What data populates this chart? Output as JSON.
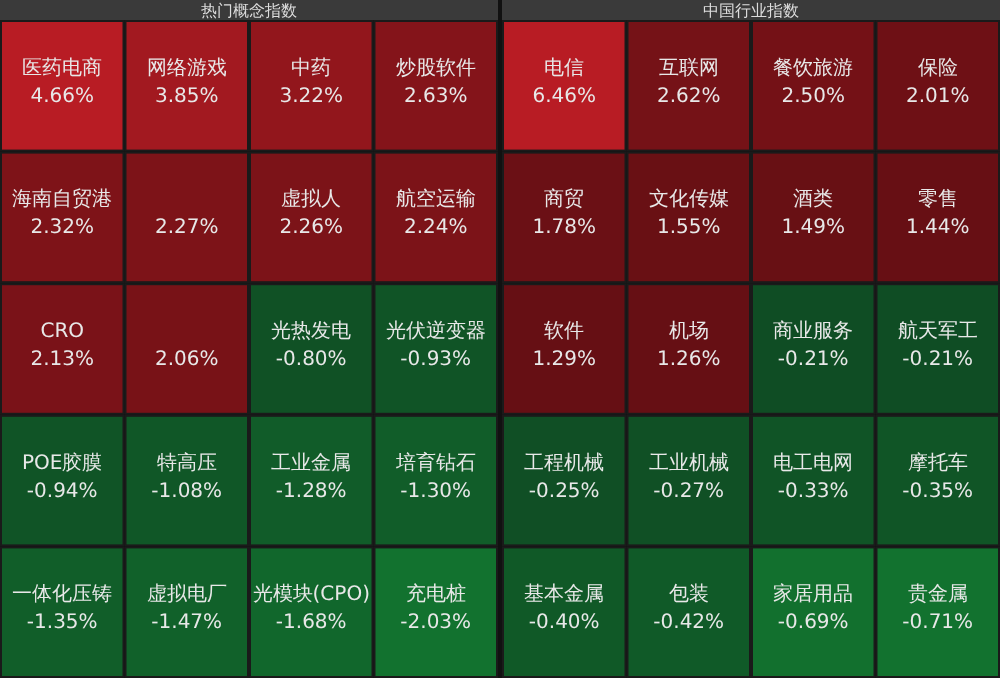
{
  "chart_data": [
    {
      "type": "other",
      "title": "热门概念指数",
      "categories": [
        "医药电商",
        "网络游戏",
        "中药",
        "炒股软件",
        "海南自贸港",
        null,
        "虚拟人",
        "航空运输",
        "CRO",
        null,
        "光热发电",
        "光伏逆变器",
        "POE胶膜",
        "特高压",
        "工业金属",
        "培育钻石",
        "一体化压铸",
        "虚拟电厂",
        "光模块(CPO)",
        "充电桩"
      ],
      "values": [
        4.66,
        3.85,
        3.22,
        2.63,
        2.32,
        2.27,
        2.26,
        2.24,
        2.13,
        2.06,
        -0.8,
        -0.93,
        -0.94,
        -1.08,
        -1.28,
        -1.3,
        -1.35,
        -1.47,
        -1.68,
        -2.03
      ],
      "value_labels": [
        "4.66%",
        "3.85%",
        "3.22%",
        "2.63%",
        "2.32%",
        "2.27%",
        "2.26%",
        "2.24%",
        "2.13%",
        "2.06%",
        "-0.80%",
        "-0.93%",
        "-0.94%",
        "-1.08%",
        "-1.28%",
        "-1.30%",
        "-1.35%",
        "-1.47%",
        "-1.68%",
        "-2.03%"
      ]
    },
    {
      "type": "other",
      "title": "中国行业指数",
      "categories": [
        "电信",
        "互联网",
        "餐饮旅游",
        "保险",
        "商贸",
        "文化传媒",
        "酒类",
        "零售",
        "软件",
        "机场",
        "商业服务",
        "航天军工",
        "工程机械",
        "工业机械",
        "电工电网",
        "摩托车",
        "基本金属",
        "包装",
        "家居用品",
        "贵金属"
      ],
      "values": [
        6.46,
        2.62,
        2.5,
        2.01,
        1.78,
        1.55,
        1.49,
        1.44,
        1.29,
        1.26,
        -0.21,
        -0.21,
        -0.25,
        -0.27,
        -0.33,
        -0.35,
        -0.4,
        -0.42,
        -0.69,
        -0.71
      ],
      "value_labels": [
        "6.46%",
        "2.62%",
        "2.50%",
        "2.01%",
        "1.78%",
        "1.55%",
        "1.49%",
        "1.44%",
        "1.29%",
        "1.26%",
        "-0.21%",
        "-0.21%",
        "-0.25%",
        "-0.27%",
        "-0.33%",
        "-0.35%",
        "-0.40%",
        "-0.42%",
        "-0.69%",
        "-0.71%"
      ]
    }
  ]
}
